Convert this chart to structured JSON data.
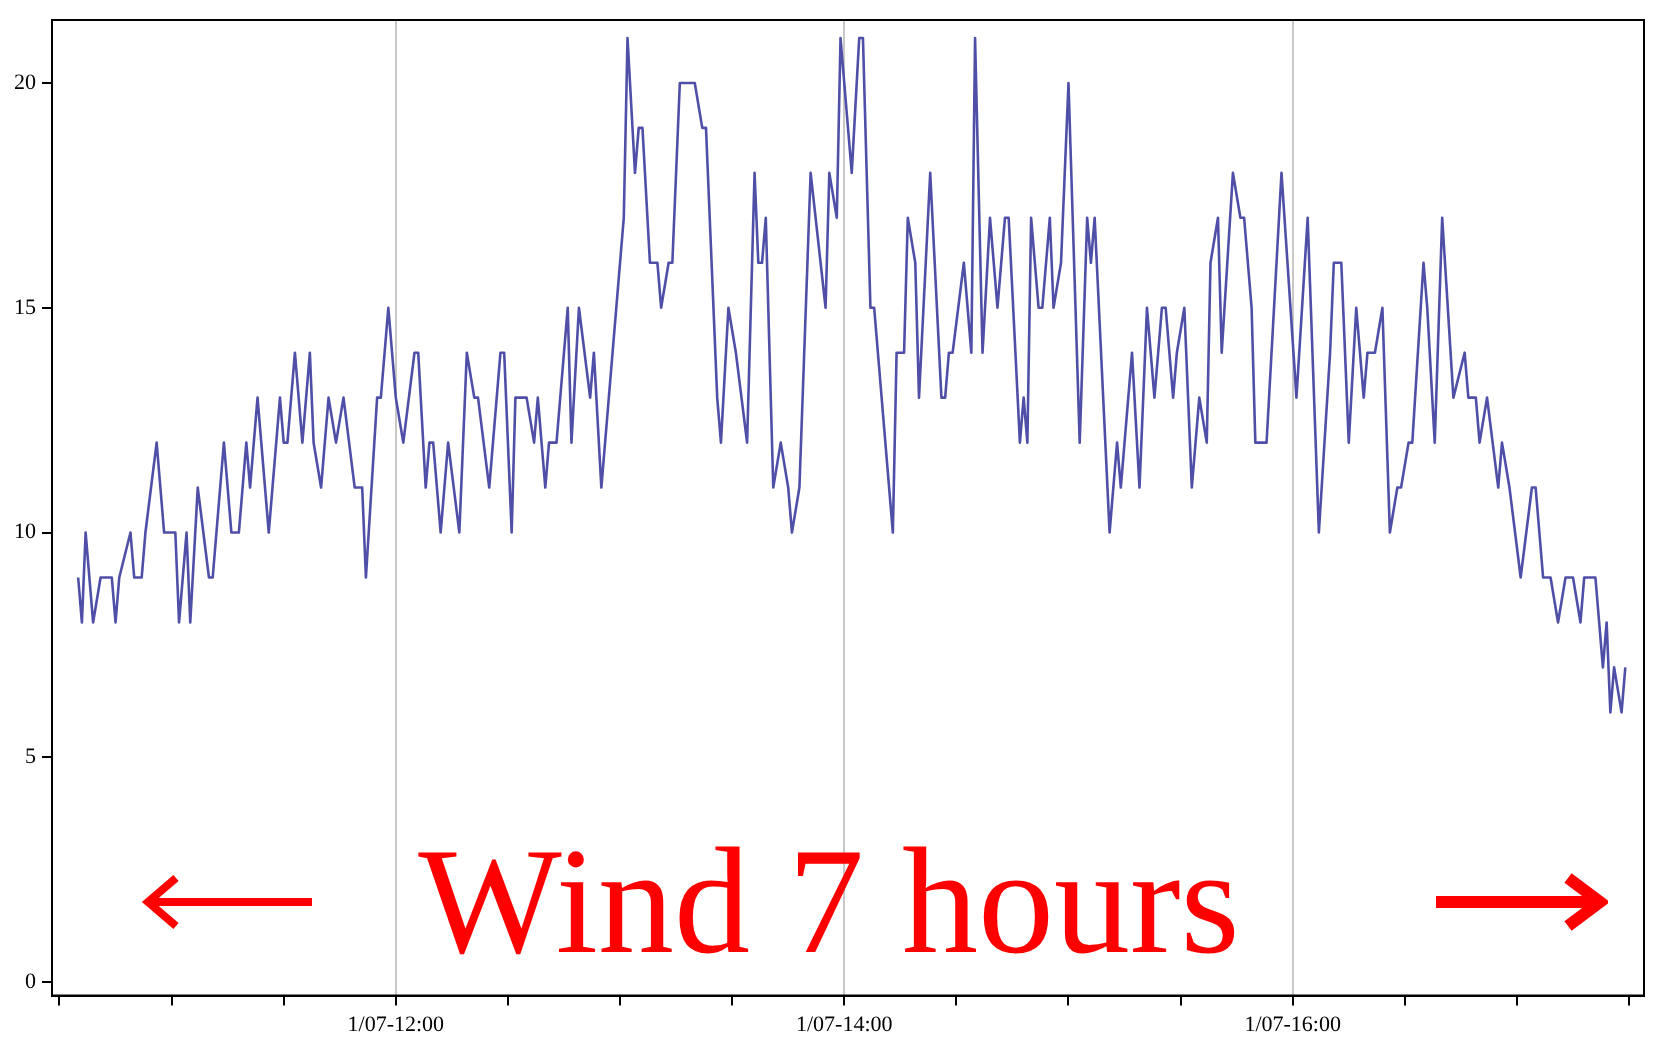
{
  "chart_data": {
    "type": "line",
    "color": "#4f4fa8",
    "grid": "x",
    "legend": false,
    "marker": "none",
    "line_style": "solid",
    "xlim": [
      "--01-07T10:28",
      "--01-07T17:34"
    ],
    "xticks": [
      {
        "value": "--01-07T10:30",
        "label": null
      },
      {
        "value": "--01-07T11:00",
        "label": null
      },
      {
        "value": "--01-07T11:30",
        "label": null
      },
      {
        "value": "--01-07T12:00",
        "label": "1/07-12:00"
      },
      {
        "value": "--01-07T12:30",
        "label": null
      },
      {
        "value": "--01-07T13:00",
        "label": null
      },
      {
        "value": "--01-07T13:30",
        "label": null
      },
      {
        "value": "--01-07T14:00",
        "label": "1/07-14:00"
      },
      {
        "value": "--01-07T14:30",
        "label": null
      },
      {
        "value": "--01-07T15:00",
        "label": null
      },
      {
        "value": "--01-07T15:30",
        "label": null
      },
      {
        "value": "--01-07T16:00",
        "label": "1/07-16:00"
      },
      {
        "value": "--01-07T16:30",
        "label": null
      },
      {
        "value": "--01-07T17:00",
        "label": null
      },
      {
        "value": "--01-07T17:30",
        "label": null
      }
    ],
    "ylim": [
      -0.3,
      21.4
    ],
    "yticks": [
      0,
      5,
      10,
      15,
      20
    ],
    "annotations": [
      "Wind 7 hours"
    ],
    "x": [
      "--01-07T10:35",
      "--01-07T10:36",
      "--01-07T10:37",
      "--01-07T10:39",
      "--01-07T10:41",
      "--01-07T10:44",
      "--01-07T10:45",
      "--01-07T10:46",
      "--01-07T10:49",
      "--01-07T10:50",
      "--01-07T10:52",
      "--01-07T10:53",
      "--01-07T10:56",
      "--01-07T10:58",
      "--01-07T11:01",
      "--01-07T11:02",
      "--01-07T11:04",
      "--01-07T11:05",
      "--01-07T11:07",
      "--01-07T11:10",
      "--01-07T11:11",
      "--01-07T11:14",
      "--01-07T11:16",
      "--01-07T11:18",
      "--01-07T11:20",
      "--01-07T11:21",
      "--01-07T11:23",
      "--01-07T11:26",
      "--01-07T11:29",
      "--01-07T11:30",
      "--01-07T11:31",
      "--01-07T11:33",
      "--01-07T11:35",
      "--01-07T11:37",
      "--01-07T11:38",
      "--01-07T11:40",
      "--01-07T11:42",
      "--01-07T11:44",
      "--01-07T11:46",
      "--01-07T11:49",
      "--01-07T11:51",
      "--01-07T11:52",
      "--01-07T11:55",
      "--01-07T11:56",
      "--01-07T11:58",
      "--01-07T12:00",
      "--01-07T12:02",
      "--01-07T12:05",
      "--01-07T12:06",
      "--01-07T12:08",
      "--01-07T12:09",
      "--01-07T12:10",
      "--01-07T12:12",
      "--01-07T12:14",
      "--01-07T12:17",
      "--01-07T12:19",
      "--01-07T12:21",
      "--01-07T12:22",
      "--01-07T12:25",
      "--01-07T12:28",
      "--01-07T12:29",
      "--01-07T12:31",
      "--01-07T12:32",
      "--01-07T12:35",
      "--01-07T12:37",
      "--01-07T12:38",
      "--01-07T12:40",
      "--01-07T12:41",
      "--01-07T12:43",
      "--01-07T12:46",
      "--01-07T12:47",
      "--01-07T12:49",
      "--01-07T12:52",
      "--01-07T12:53",
      "--01-07T12:55",
      "--01-07T12:58",
      "--01-07T13:01",
      "--01-07T13:02",
      "--01-07T13:04",
      "--01-07T13:05",
      "--01-07T13:06",
      "--01-07T13:08",
      "--01-07T13:10",
      "--01-07T13:11",
      "--01-07T13:13",
      "--01-07T13:14",
      "--01-07T13:16",
      "--01-07T13:20",
      "--01-07T13:22",
      "--01-07T13:23",
      "--01-07T13:26",
      "--01-07T13:27",
      "--01-07T13:29",
      "--01-07T13:31",
      "--01-07T13:34",
      "--01-07T13:36",
      "--01-07T13:37",
      "--01-07T13:38",
      "--01-07T13:39",
      "--01-07T13:41",
      "--01-07T13:43",
      "--01-07T13:45",
      "--01-07T13:46",
      "--01-07T13:48",
      "--01-07T13:51",
      "--01-07T13:55",
      "--01-07T13:56",
      "--01-07T13:58",
      "--01-07T13:59",
      "--01-07T14:02",
      "--01-07T14:04",
      "--01-07T14:05",
      "--01-07T14:07",
      "--01-07T14:08",
      "--01-07T14:13",
      "--01-07T14:14",
      "--01-07T14:16",
      "--01-07T14:17",
      "--01-07T14:19",
      "--01-07T14:20",
      "--01-07T14:23",
      "--01-07T14:26",
      "--01-07T14:27",
      "--01-07T14:28",
      "--01-07T14:29",
      "--01-07T14:32",
      "--01-07T14:34",
      "--01-07T14:35",
      "--01-07T14:37",
      "--01-07T14:39",
      "--01-07T14:41",
      "--01-07T14:43",
      "--01-07T14:44",
      "--01-07T14:47",
      "--01-07T14:48",
      "--01-07T14:49",
      "--01-07T14:50",
      "--01-07T14:52",
      "--01-07T14:53",
      "--01-07T14:55",
      "--01-07T14:56",
      "--01-07T14:58",
      "--01-07T15:00",
      "--01-07T15:03",
      "--01-07T15:05",
      "--01-07T15:06",
      "--01-07T15:07",
      "--01-07T15:11",
      "--01-07T15:13",
      "--01-07T15:14",
      "--01-07T15:17",
      "--01-07T15:19",
      "--01-07T15:21",
      "--01-07T15:23",
      "--01-07T15:25",
      "--01-07T15:26",
      "--01-07T15:28",
      "--01-07T15:29",
      "--01-07T15:31",
      "--01-07T15:33",
      "--01-07T15:35",
      "--01-07T15:37",
      "--01-07T15:38",
      "--01-07T15:40",
      "--01-07T15:41",
      "--01-07T15:44",
      "--01-07T15:46",
      "--01-07T15:47",
      "--01-07T15:49",
      "--01-07T15:50",
      "--01-07T15:53",
      "--01-07T15:57",
      "--01-07T16:01",
      "--01-07T16:04",
      "--01-07T16:07",
      "--01-07T16:10",
      "--01-07T16:11",
      "--01-07T16:13",
      "--01-07T16:15",
      "--01-07T16:17",
      "--01-07T16:19",
      "--01-07T16:20",
      "--01-07T16:22",
      "--01-07T16:24",
      "--01-07T16:26",
      "--01-07T16:28",
      "--01-07T16:29",
      "--01-07T16:31",
      "--01-07T16:32",
      "--01-07T16:35",
      "--01-07T16:36",
      "--01-07T16:38",
      "--01-07T16:40",
      "--01-07T16:43",
      "--01-07T16:46",
      "--01-07T16:47",
      "--01-07T16:49",
      "--01-07T16:50",
      "--01-07T16:52",
      "--01-07T16:55",
      "--01-07T16:56",
      "--01-07T16:58",
      "--01-07T17:01",
      "--01-07T17:04",
      "--01-07T17:05",
      "--01-07T17:07",
      "--01-07T17:09",
      "--01-07T17:11",
      "--01-07T17:13",
      "--01-07T17:15",
      "--01-07T17:17",
      "--01-07T17:18",
      "--01-07T17:21",
      "--01-07T17:23",
      "--01-07T17:24",
      "--01-07T17:25",
      "--01-07T17:26",
      "--01-07T17:28",
      "--01-07T17:29"
    ],
    "values": [
      9,
      8,
      10,
      8,
      9,
      9,
      8,
      9,
      10,
      9,
      9,
      10,
      12,
      10,
      10,
      8,
      10,
      8,
      11,
      9,
      9,
      12,
      10,
      10,
      12,
      11,
      13,
      10,
      13,
      12,
      12,
      14,
      12,
      14,
      12,
      11,
      13,
      12,
      13,
      11,
      11,
      9,
      13,
      13,
      15,
      13,
      12,
      14,
      14,
      11,
      12,
      12,
      10,
      12,
      10,
      14,
      13,
      13,
      11,
      14,
      14,
      10,
      13,
      13,
      12,
      13,
      11,
      12,
      12,
      15,
      12,
      15,
      13,
      14,
      11,
      14,
      17,
      21,
      18,
      19,
      19,
      16,
      16,
      15,
      16,
      16,
      20,
      20,
      19,
      19,
      13,
      12,
      15,
      14,
      12,
      18,
      16,
      16,
      17,
      11,
      12,
      11,
      10,
      11,
      18,
      15,
      18,
      17,
      21,
      18,
      21,
      21,
      15,
      15,
      10,
      14,
      14,
      17,
      16,
      13,
      18,
      13,
      13,
      14,
      14,
      16,
      14,
      21,
      14,
      17,
      15,
      17,
      17,
      12,
      13,
      12,
      17,
      15,
      15,
      17,
      15,
      16,
      20,
      12,
      17,
      16,
      17,
      10,
      12,
      11,
      14,
      11,
      15,
      13,
      15,
      15,
      13,
      14,
      15,
      11,
      13,
      12,
      16,
      17,
      14,
      18,
      17,
      17,
      15,
      12,
      12,
      18,
      13,
      17,
      10,
      14,
      16,
      16,
      12,
      15,
      13,
      14,
      14,
      15,
      10,
      11,
      11,
      12,
      12,
      16,
      15,
      12,
      17,
      13,
      14,
      13,
      13,
      12,
      13,
      11,
      12,
      11,
      9,
      11,
      11,
      9,
      9,
      8,
      9,
      9,
      8,
      9,
      9,
      7,
      8,
      6,
      7,
      6,
      7
    ]
  }
}
